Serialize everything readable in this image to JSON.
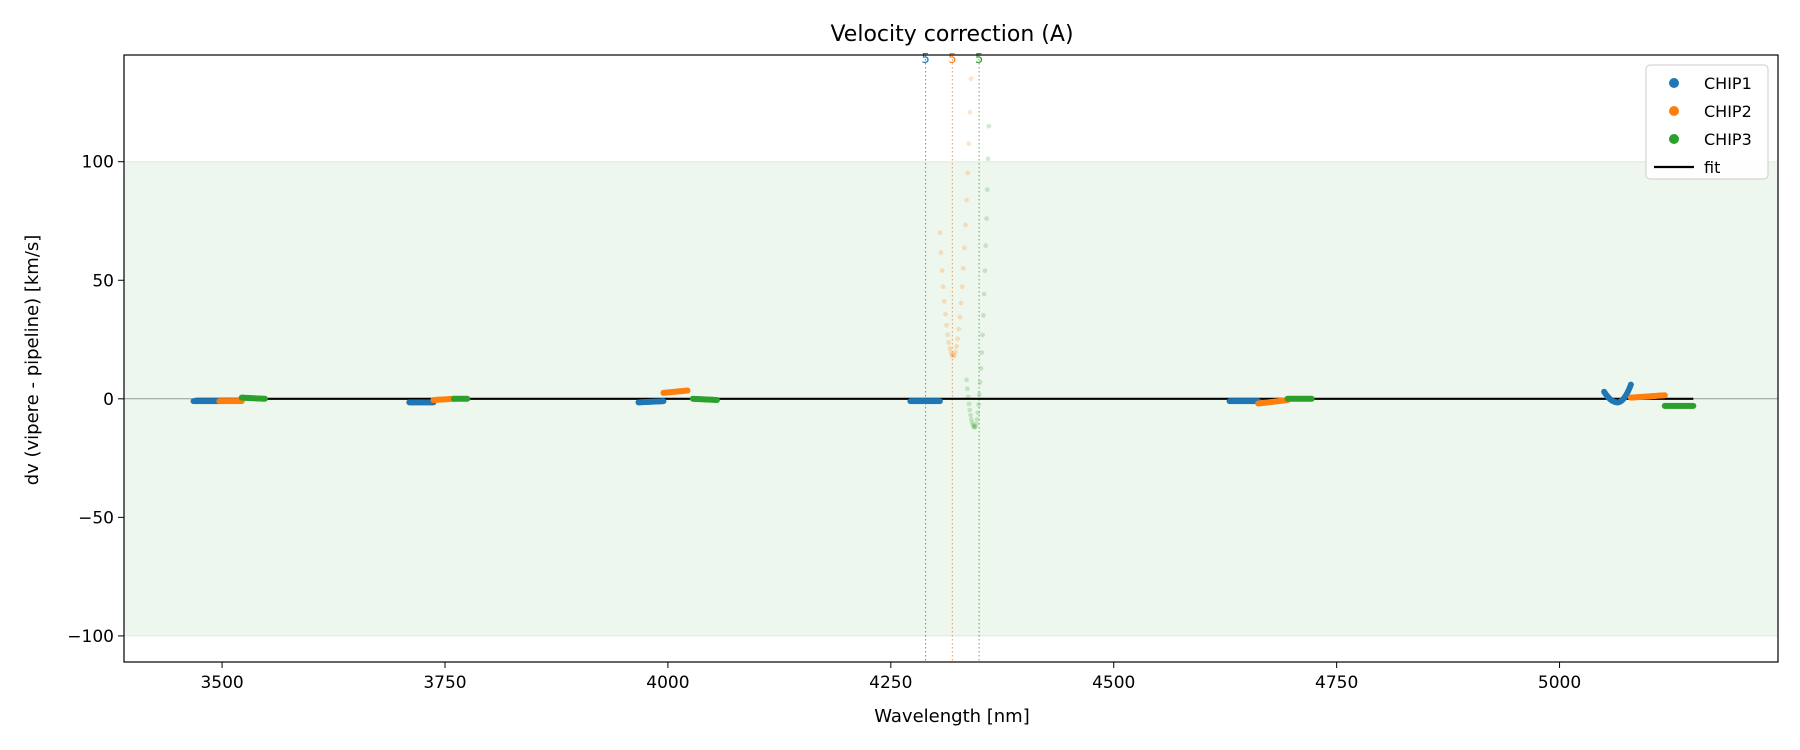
{
  "chart_data": {
    "type": "scatter",
    "title": "Velocity correction (A)",
    "xlabel": "Wavelength [nm]",
    "ylabel": "dv (vipere - pipeline) [km/s]",
    "xlim": [
      3390,
      5245
    ],
    "ylim": [
      -111,
      145
    ],
    "xticks": [
      3500,
      3750,
      4000,
      4250,
      4500,
      4750,
      5000
    ],
    "xtick_labels": [
      "3500",
      "3750",
      "4000",
      "4250",
      "4500",
      "4750",
      "5000"
    ],
    "yticks": [
      -100,
      -50,
      0,
      50,
      100
    ],
    "ytick_labels": [
      "−100",
      "−50",
      "0",
      "50",
      "100"
    ],
    "grid": false,
    "legend_position": "top-right",
    "shaded_band": {
      "y0": -100,
      "y1": 100,
      "color": "#eef7ee"
    },
    "zero_line": {
      "y": 0,
      "color": "#999999"
    },
    "vertical_markers": [
      {
        "x": 4289,
        "label": "5",
        "color": "#1f77b4"
      },
      {
        "x": 4319,
        "label": "5",
        "color": "#ff7f0e"
      },
      {
        "x": 4349,
        "label": "5",
        "color": "#2ca02c"
      }
    ],
    "series": [
      {
        "name": "CHIP1",
        "color": "#1f77b4",
        "type": "scatter",
        "segments": [
          {
            "x0": 3468,
            "x1": 3497,
            "y0": -1.0,
            "y1": -1.0
          },
          {
            "x0": 3710,
            "x1": 3737,
            "y0": -1.5,
            "y1": -1.5
          },
          {
            "x0": 3967,
            "x1": 3995,
            "y0": -1.5,
            "y1": -1.0
          },
          {
            "x0": 4272,
            "x1": 4305,
            "y0": -1.0,
            "y1": -1.0
          },
          {
            "x0": 4630,
            "x1": 4662,
            "y0": -1.0,
            "y1": -1.0
          },
          {
            "x0": 5050,
            "x1": 5080,
            "y0": 3.0,
            "y1": 6.0,
            "dip": -1.5
          }
        ]
      },
      {
        "name": "CHIP2",
        "color": "#ff7f0e",
        "type": "scatter",
        "segments": [
          {
            "x0": 3497,
            "x1": 3522,
            "y0": -1.0,
            "y1": -1.0
          },
          {
            "x0": 3737,
            "x1": 3760,
            "y0": -0.5,
            "y1": 0.0
          },
          {
            "x0": 3995,
            "x1": 4022,
            "y0": 2.5,
            "y1": 3.5
          },
          {
            "x0": 4662,
            "x1": 4695,
            "y0": -2.0,
            "y1": -0.5
          },
          {
            "x0": 5080,
            "x1": 5118,
            "y0": 0.5,
            "y1": 1.5
          }
        ]
      },
      {
        "name": "CHIP3",
        "color": "#2ca02c",
        "type": "scatter",
        "segments": [
          {
            "x0": 3522,
            "x1": 3548,
            "y0": 0.5,
            "y1": 0.0
          },
          {
            "x0": 3760,
            "x1": 3775,
            "y0": 0.0,
            "y1": 0.0
          },
          {
            "x0": 4028,
            "x1": 4055,
            "y0": 0.0,
            "y1": -0.5
          },
          {
            "x0": 4695,
            "x1": 4722,
            "y0": 0.0,
            "y1": 0.0
          },
          {
            "x0": 5118,
            "x1": 5150,
            "y0": -3.0,
            "y1": -3.0
          }
        ]
      },
      {
        "name": "fit",
        "color": "#000000",
        "type": "line",
        "x": [
          3470,
          5150
        ],
        "y": [
          0,
          0
        ]
      }
    ],
    "outlier_curves": [
      {
        "series": "CHIP2",
        "color": "#ff7f0e",
        "x0": 4305,
        "x1": 4340,
        "xmin": 4320,
        "ymin": 18,
        "left_top": 70,
        "right_top": 135
      },
      {
        "series": "CHIP3",
        "color": "#2ca02c",
        "x0": 4335,
        "x1": 4360,
        "xmin": 4344,
        "ymin": -12,
        "left_top": 8,
        "right_top": 115
      }
    ]
  }
}
